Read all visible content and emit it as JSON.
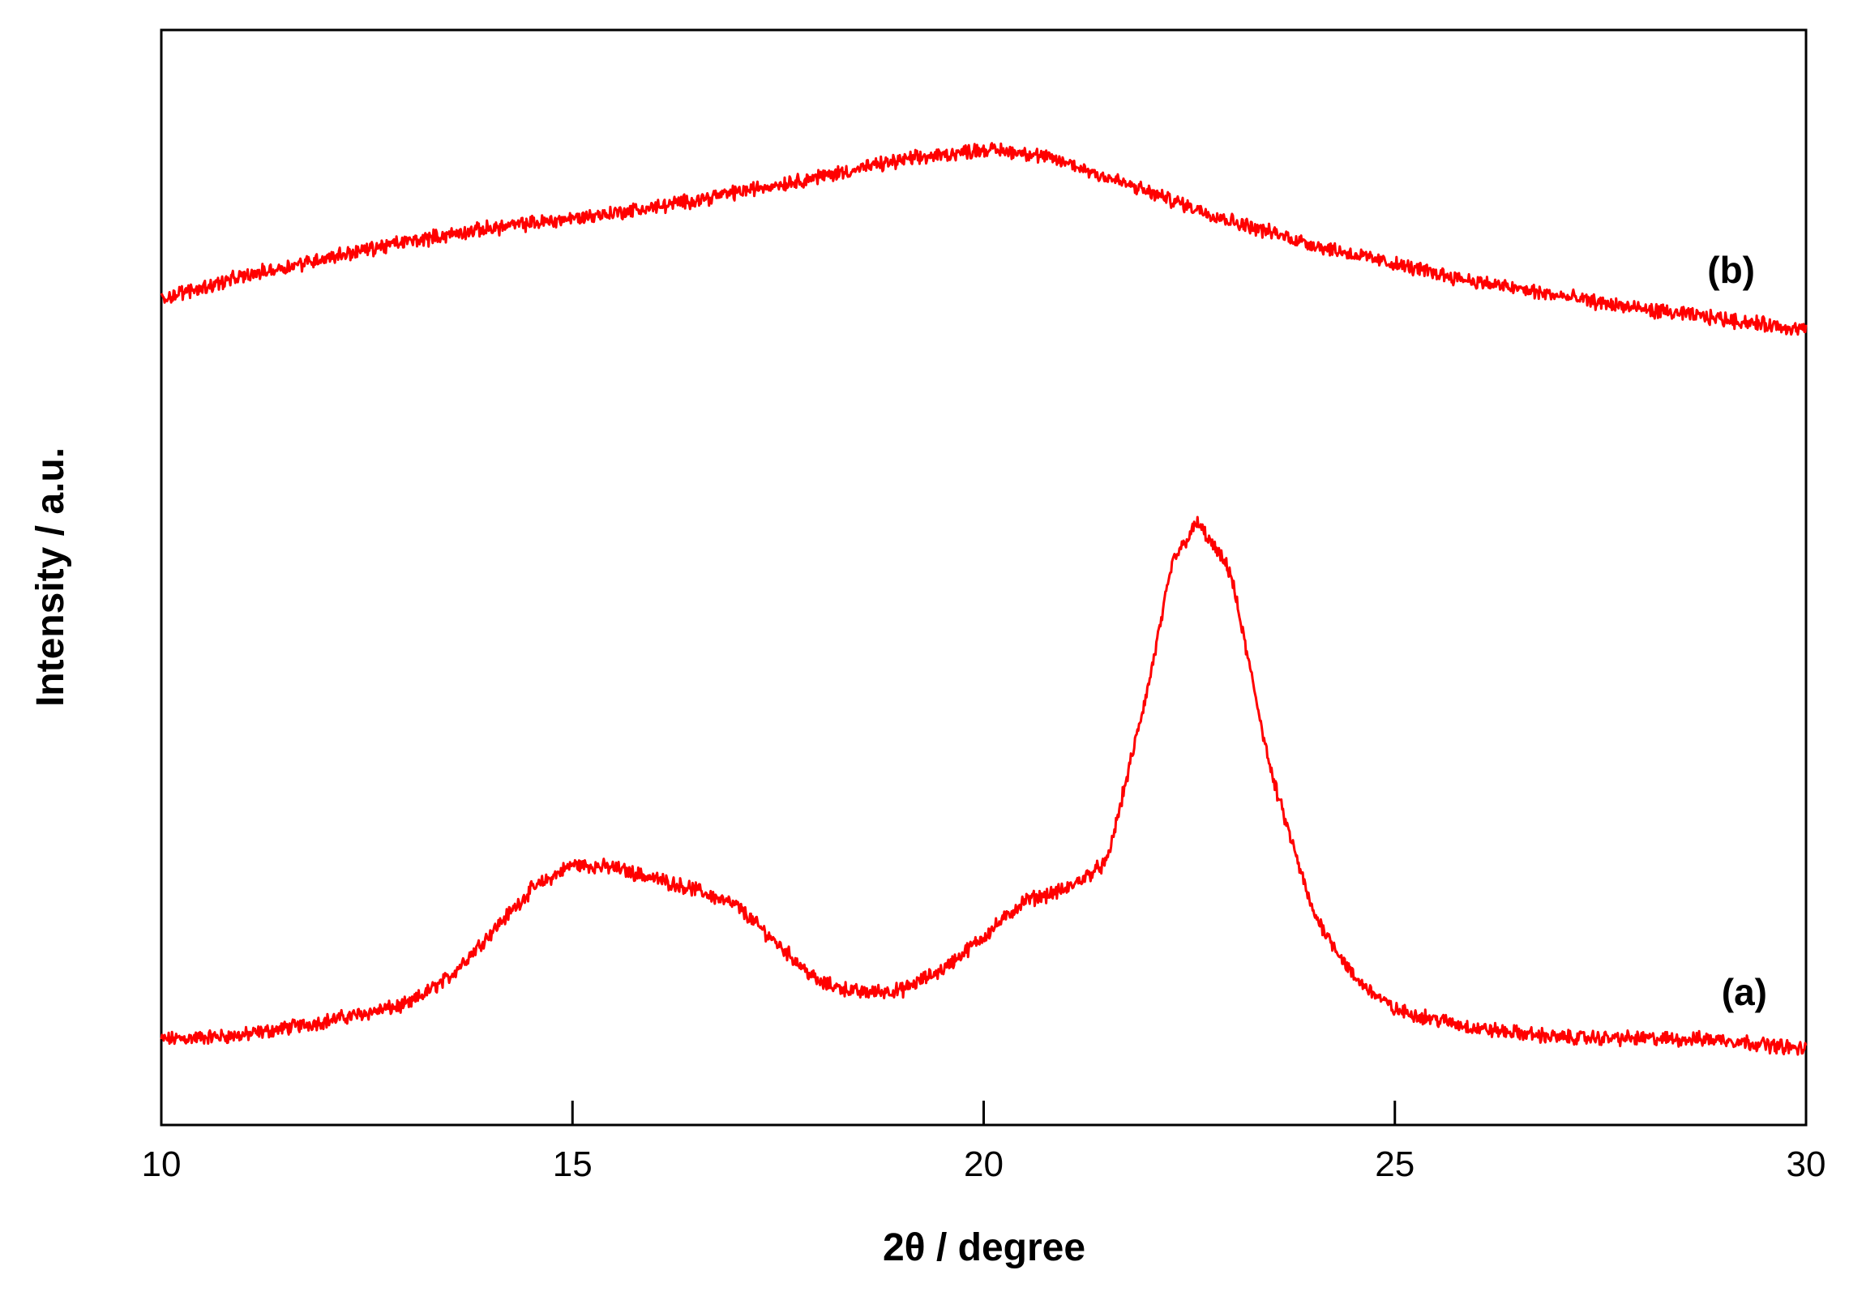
{
  "chart_data": {
    "type": "line",
    "title": "",
    "xlabel": "2θ / degree",
    "ylabel": "Intensity / a.u.",
    "xlim": [
      10,
      30
    ],
    "ylim": [
      0,
      100
    ],
    "xticks": [
      10,
      15,
      20,
      25,
      30
    ],
    "y_tick_labels": false,
    "grid": false,
    "legend": "none",
    "line_color": "#ff0000",
    "series": [
      {
        "name": "(a)",
        "x": [
          10,
          11,
          12,
          13,
          13.5,
          14,
          14.5,
          15,
          15.5,
          16,
          16.5,
          17,
          17.5,
          18,
          18.5,
          19,
          19.5,
          20,
          20.5,
          21,
          21.5,
          22,
          22.3,
          22.6,
          23,
          23.5,
          24,
          24.5,
          25,
          26,
          27,
          28,
          29,
          30
        ],
        "y": [
          7.8,
          8.2,
          9.5,
          11,
          13.5,
          17.5,
          21.5,
          23.8,
          23.5,
          22.5,
          21.5,
          20,
          16.5,
          13,
          12.1,
          12.3,
          14.2,
          17.2,
          20.5,
          21.5,
          24,
          40,
          51.5,
          55,
          50.5,
          32,
          19.5,
          13.5,
          10.5,
          8.8,
          8,
          7.9,
          7.8,
          6.9
        ]
      },
      {
        "name": "(b)",
        "x": [
          10,
          11,
          12,
          13,
          14,
          15,
          16,
          17,
          18,
          19,
          20,
          20.5,
          21,
          22,
          23,
          24,
          25,
          26,
          27,
          28,
          29,
          30
        ],
        "y": [
          75.5,
          77.5,
          79.2,
          80.7,
          81.9,
          82.8,
          83.8,
          85.2,
          86.6,
          88.1,
          89.1,
          88.8,
          87.9,
          85.2,
          82.6,
          80.4,
          78.6,
          77,
          75.7,
          74.5,
          73.6,
          72.6
        ]
      }
    ]
  }
}
